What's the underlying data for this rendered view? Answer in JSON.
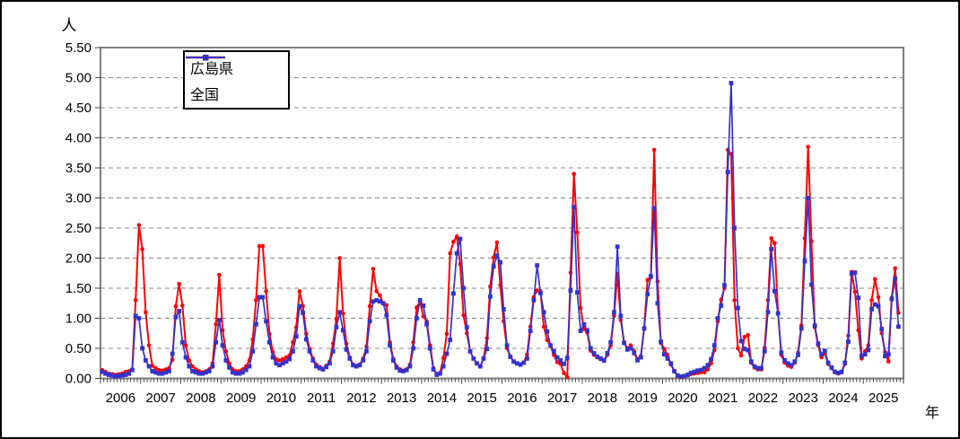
{
  "figure": {
    "background_color": "#FFFFFF",
    "border_color": "#000000",
    "grid_color": "#888888",
    "axis_box_color": "#808080",
    "tick_color": "#444444"
  },
  "chart_data": {
    "type": "line",
    "title": "",
    "ylabel": "人",
    "xlabel": "年",
    "ylim": [
      0,
      5.5
    ],
    "ytick_step": 0.5,
    "ytick_labels": [
      "0.00",
      "0.50",
      "1.00",
      "1.50",
      "2.00",
      "2.50",
      "3.00",
      "3.50",
      "4.00",
      "4.50",
      "5.00",
      "5.50"
    ],
    "x_years": [
      2006,
      2007,
      2008,
      2009,
      2010,
      2011,
      2012,
      2013,
      2014,
      2015,
      2016,
      2017,
      2018,
      2019,
      2020,
      2021,
      2022,
      2023,
      2024,
      2025
    ],
    "x_frequency": "monthly",
    "x_start": "2006-01",
    "grid": "horizontal-dashed",
    "legend_position": "upper-left-inside",
    "series": [
      {
        "name": "広島県",
        "color": "#FF0000",
        "marker": "circle",
        "values": [
          0.14,
          0.11,
          0.08,
          0.07,
          0.06,
          0.07,
          0.08,
          0.11,
          0.12,
          0.15,
          1.3,
          2.55,
          2.15,
          1.1,
          0.55,
          0.21,
          0.17,
          0.14,
          0.13,
          0.15,
          0.17,
          0.31,
          1.2,
          1.57,
          1.21,
          0.55,
          0.3,
          0.2,
          0.15,
          0.12,
          0.1,
          0.12,
          0.15,
          0.25,
          0.9,
          1.72,
          0.8,
          0.45,
          0.25,
          0.15,
          0.12,
          0.12,
          0.15,
          0.2,
          0.3,
          0.65,
          1.3,
          2.2,
          2.2,
          1.45,
          0.74,
          0.44,
          0.32,
          0.3,
          0.32,
          0.35,
          0.38,
          0.6,
          0.85,
          1.45,
          1.2,
          0.74,
          0.49,
          0.33,
          0.23,
          0.19,
          0.16,
          0.21,
          0.28,
          0.58,
          0.99,
          2.0,
          1.08,
          0.58,
          0.35,
          0.23,
          0.21,
          0.23,
          0.33,
          0.53,
          1.2,
          1.82,
          1.45,
          1.38,
          1.25,
          1.22,
          0.6,
          0.33,
          0.2,
          0.15,
          0.13,
          0.15,
          0.23,
          0.6,
          1.18,
          1.28,
          1.03,
          0.95,
          0.55,
          0.17,
          0.07,
          0.09,
          0.34,
          0.74,
          2.08,
          2.27,
          2.36,
          1.9,
          1.05,
          0.75,
          0.45,
          0.33,
          0.25,
          0.2,
          0.33,
          0.67,
          1.53,
          2.01,
          2.26,
          1.55,
          0.95,
          0.5,
          0.36,
          0.28,
          0.25,
          0.23,
          0.26,
          0.4,
          0.86,
          1.35,
          1.46,
          1.45,
          0.86,
          0.64,
          0.54,
          0.39,
          0.27,
          0.24,
          0.09,
          0.02,
          1.76,
          3.4,
          2.43,
          1.17,
          0.82,
          0.76,
          0.46,
          0.39,
          0.35,
          0.32,
          0.29,
          0.39,
          0.55,
          1.04,
          1.74,
          0.97,
          0.6,
          0.5,
          0.55,
          0.45,
          0.32,
          0.37,
          0.84,
          1.64,
          1.68,
          3.8,
          1.61,
          0.59,
          0.49,
          0.39,
          0.23,
          0.12,
          0.04,
          0.02,
          0.03,
          0.05,
          0.07,
          0.08,
          0.09,
          0.1,
          0.1,
          0.15,
          0.25,
          0.47,
          0.95,
          1.31,
          1.5,
          3.8,
          3.73,
          1.3,
          0.5,
          0.38,
          0.69,
          0.72,
          0.26,
          0.18,
          0.15,
          0.15,
          0.51,
          1.3,
          2.33,
          2.25,
          1.09,
          0.39,
          0.26,
          0.21,
          0.19,
          0.26,
          0.43,
          0.88,
          2.33,
          3.85,
          2.28,
          0.85,
          0.55,
          0.35,
          0.42,
          0.24,
          0.17,
          0.1,
          0.08,
          0.1,
          0.24,
          0.71,
          1.77,
          1.44,
          0.8,
          0.33,
          0.45,
          0.55,
          1.3,
          1.65,
          1.35,
          0.75,
          0.44,
          0.28,
          1.34,
          1.83,
          1.09
        ]
      },
      {
        "name": "全国",
        "color": "#3333CC",
        "marker": "square",
        "values": [
          0.11,
          0.08,
          0.06,
          0.05,
          0.03,
          0.04,
          0.05,
          0.06,
          0.08,
          0.14,
          1.04,
          1.0,
          0.5,
          0.3,
          0.2,
          0.12,
          0.1,
          0.08,
          0.08,
          0.1,
          0.12,
          0.41,
          1.02,
          1.12,
          0.6,
          0.35,
          0.2,
          0.12,
          0.1,
          0.08,
          0.08,
          0.1,
          0.12,
          0.2,
          0.6,
          0.97,
          0.55,
          0.3,
          0.18,
          0.1,
          0.08,
          0.08,
          0.1,
          0.14,
          0.2,
          0.45,
          0.9,
          1.35,
          1.35,
          0.95,
          0.6,
          0.35,
          0.25,
          0.22,
          0.25,
          0.28,
          0.32,
          0.45,
          0.7,
          1.2,
          1.09,
          0.65,
          0.45,
          0.3,
          0.2,
          0.17,
          0.15,
          0.19,
          0.25,
          0.45,
          0.85,
          1.1,
          0.8,
          0.48,
          0.33,
          0.22,
          0.2,
          0.22,
          0.3,
          0.45,
          0.95,
          1.28,
          1.3,
          1.28,
          1.25,
          1.05,
          0.55,
          0.3,
          0.18,
          0.13,
          0.12,
          0.14,
          0.2,
          0.5,
          1.0,
          1.3,
          1.21,
          0.9,
          0.5,
          0.15,
          0.06,
          0.08,
          0.2,
          0.41,
          0.64,
          1.41,
          2.08,
          2.32,
          1.5,
          0.85,
          0.45,
          0.33,
          0.25,
          0.2,
          0.33,
          0.49,
          1.36,
          1.86,
          2.04,
          1.93,
          1.15,
          0.55,
          0.36,
          0.28,
          0.25,
          0.23,
          0.26,
          0.33,
          0.79,
          1.3,
          1.88,
          1.42,
          1.1,
          0.78,
          0.55,
          0.45,
          0.35,
          0.3,
          0.24,
          0.34,
          1.46,
          2.85,
          1.43,
          0.79,
          0.9,
          0.8,
          0.5,
          0.42,
          0.36,
          0.33,
          0.3,
          0.42,
          0.6,
          1.1,
          2.19,
          1.04,
          0.59,
          0.48,
          0.5,
          0.42,
          0.3,
          0.35,
          0.83,
          1.4,
          1.7,
          2.83,
          1.25,
          0.61,
          0.4,
          0.33,
          0.25,
          0.12,
          0.05,
          0.03,
          0.04,
          0.06,
          0.09,
          0.11,
          0.13,
          0.14,
          0.17,
          0.22,
          0.32,
          0.55,
          1.0,
          1.21,
          1.55,
          3.43,
          4.91,
          2.5,
          1.17,
          0.62,
          0.49,
          0.47,
          0.28,
          0.2,
          0.17,
          0.17,
          0.45,
          1.1,
          2.15,
          1.45,
          1.08,
          0.43,
          0.3,
          0.25,
          0.22,
          0.28,
          0.39,
          0.83,
          1.95,
          3.0,
          1.56,
          0.88,
          0.58,
          0.4,
          0.46,
          0.26,
          0.18,
          0.11,
          0.09,
          0.11,
          0.26,
          0.61,
          1.74,
          1.76,
          1.34,
          0.37,
          0.4,
          0.47,
          1.15,
          1.23,
          1.2,
          0.82,
          0.37,
          0.4,
          1.32,
          1.66,
          0.86
        ]
      }
    ]
  }
}
